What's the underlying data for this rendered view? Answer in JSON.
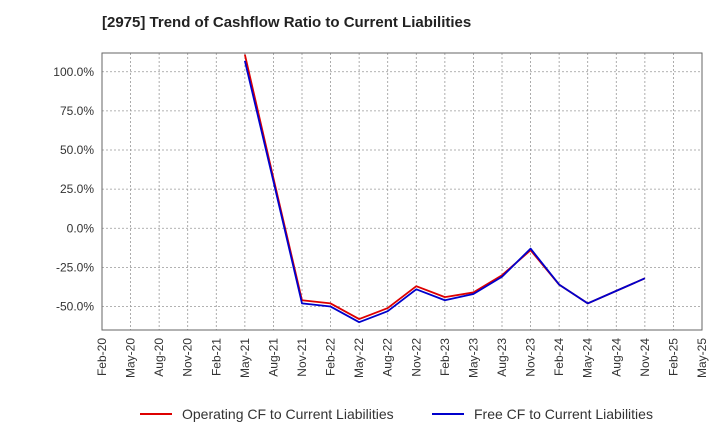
{
  "chart_data": {
    "type": "line",
    "title": "[2975]  Trend of Cashflow Ratio to Current Liabilities",
    "xlabel": "",
    "ylabel": "",
    "ylim": [
      -65,
      112
    ],
    "yticks": [
      100,
      75,
      50,
      25,
      0,
      -25,
      -50
    ],
    "ytick_labels": [
      "100.0%",
      "75.0%",
      "50.0%",
      "25.0%",
      "0.0%",
      "-25.0%",
      "-50.0%"
    ],
    "categories": [
      "Feb-20",
      "May-20",
      "Aug-20",
      "Nov-20",
      "Feb-21",
      "May-21",
      "Aug-21",
      "Nov-21",
      "Feb-22",
      "May-22",
      "Aug-22",
      "Nov-22",
      "Feb-23",
      "May-23",
      "Aug-23",
      "Nov-23",
      "Feb-24",
      "May-24",
      "Aug-24",
      "Nov-24",
      "Feb-25",
      "May-25"
    ],
    "grid": true,
    "legend_position": "bottom",
    "series": [
      {
        "name": "Operating CF to Current Liabilities",
        "color": "#dd0000",
        "values": [
          null,
          null,
          null,
          null,
          null,
          111,
          32,
          -46,
          -48,
          -58,
          -51,
          -37,
          -44,
          -41,
          -30,
          -14,
          -36,
          -48,
          -40,
          -32,
          null,
          null
        ]
      },
      {
        "name": "Free CF to Current Liabilities",
        "color": "#0000cc",
        "values": [
          null,
          null,
          null,
          null,
          null,
          107,
          30,
          -48,
          -50,
          -60,
          -53,
          -39,
          -46,
          -42,
          -31,
          -13,
          -36,
          -48,
          -40,
          -32,
          null,
          null
        ]
      }
    ]
  }
}
